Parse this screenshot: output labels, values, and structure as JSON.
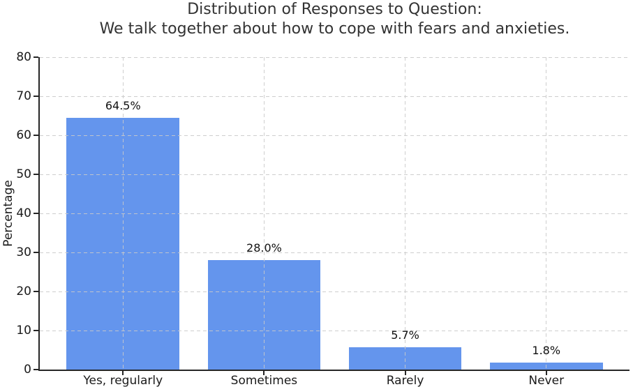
{
  "title": {
    "line1": "Distribution of Responses to Question:",
    "line2": "We talk together about how to cope with fears and anxieties."
  },
  "chart_data": {
    "type": "bar",
    "title": "Distribution of Responses to Question:\nWe talk together about how to cope with fears and anxieties.",
    "categories": [
      "Yes, regularly",
      "Sometimes",
      "Rarely",
      "Never"
    ],
    "values": [
      64.5,
      28.0,
      5.7,
      1.8
    ],
    "value_labels": [
      "64.5%",
      "28.0%",
      "5.7%",
      "1.8%"
    ],
    "xlabel": "",
    "ylabel": "Percentage",
    "ylim": [
      0,
      80
    ],
    "yticks": [
      0,
      10,
      20,
      30,
      40,
      50,
      60,
      70,
      80
    ],
    "grid": "dashed, horizontal at each ytick and vertical at each category center, drawn over bars",
    "legend": "none",
    "bar_color": "#6495ED",
    "axis_color": "#262626",
    "grid_color": "#c9c9c9",
    "text_color": "#1a1a1a",
    "title_color": "#333333",
    "background": "#ffffff"
  }
}
